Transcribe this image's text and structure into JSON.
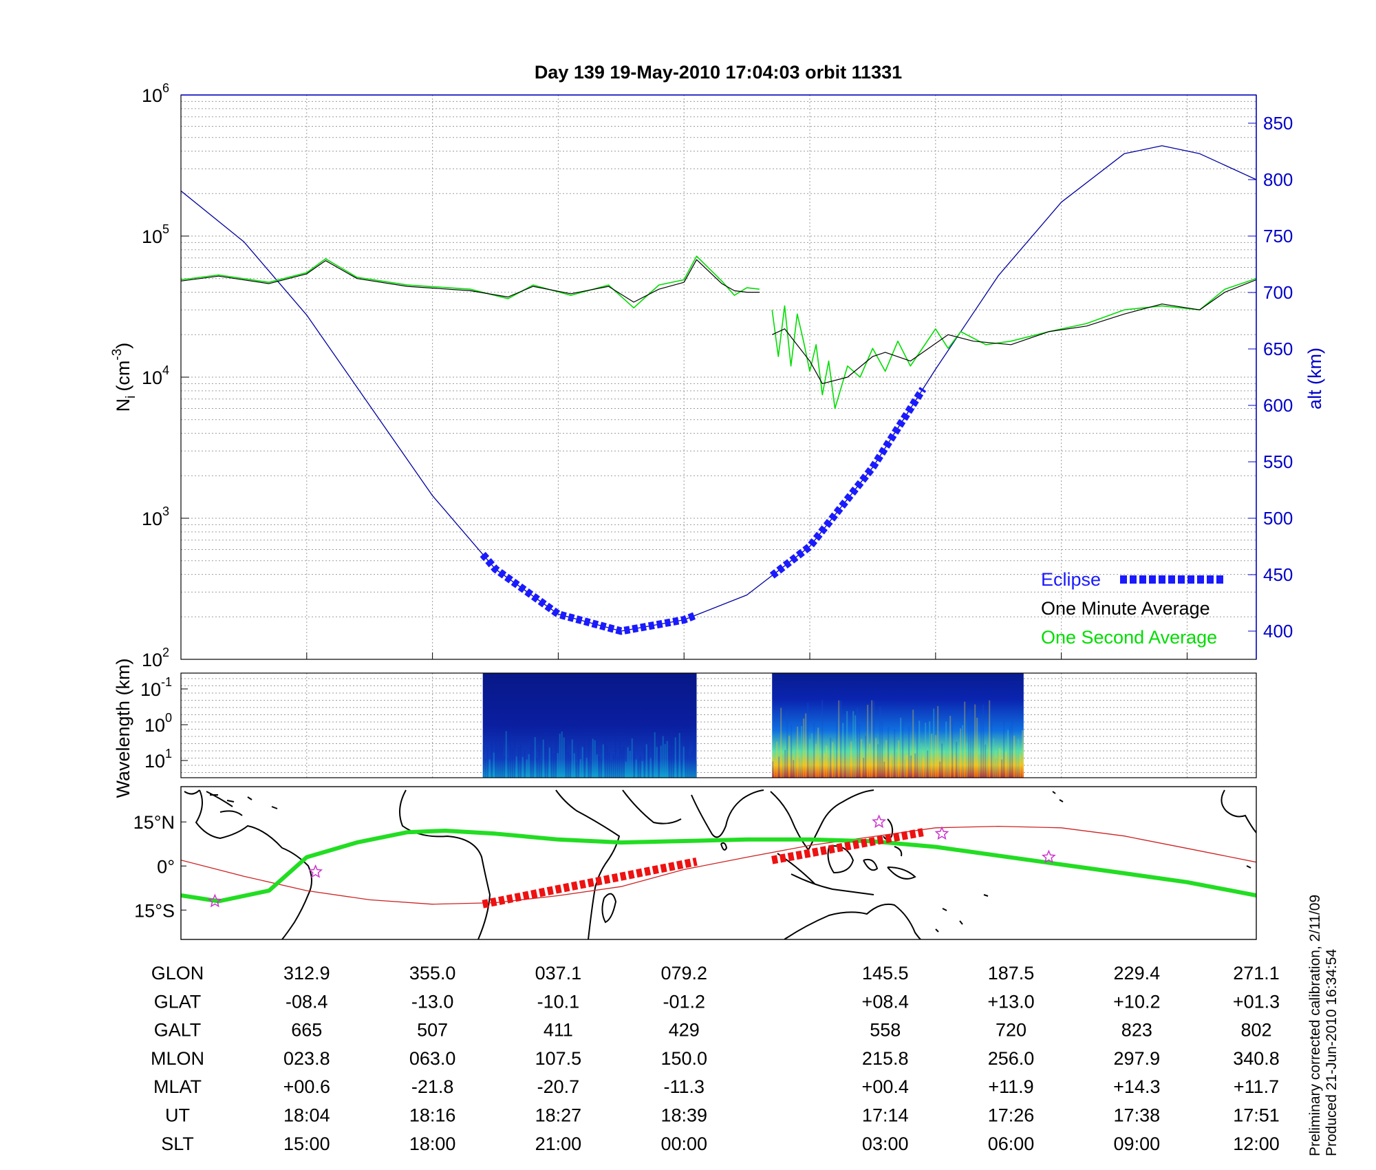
{
  "title": "Day 139  19-May-2010 17:04:03   orbit 11331",
  "side_note": [
    "Preliminary corrected calibration, 2/11/09",
    "Produced 21-Jun-2010 16:34:54"
  ],
  "colors": {
    "alt": "#0000a0",
    "eclipse": "#1a1aff",
    "minute": "#000000",
    "second": "#00dd00",
    "track": "#22dd22",
    "ref_track": "#cc2222",
    "eclipse_track": "#ee1111",
    "star": "#cc33cc"
  },
  "chart_data": [
    {
      "type": "line",
      "panel": "density",
      "ylabel": "N_i (cm^-3)",
      "ylabel_base": "N",
      "ylabel_sub": "i",
      "ylabel_unit": "(cm",
      "ylabel_exp": "-3",
      "yscale": "log",
      "ylim": [
        100,
        1000000
      ],
      "yticks": [
        {
          "base": "10",
          "exp": "2",
          "value": 100
        },
        {
          "base": "10",
          "exp": "3",
          "value": 1000
        },
        {
          "base": "10",
          "exp": "4",
          "value": 10000
        },
        {
          "base": "10",
          "exp": "5",
          "value": 100000
        },
        {
          "base": "10",
          "exp": "6",
          "value": 1000000
        }
      ],
      "y2label": "alt (km)",
      "y2lim": [
        375,
        875
      ],
      "y2ticks": [
        400,
        450,
        500,
        550,
        600,
        650,
        700,
        750,
        800,
        850
      ],
      "xlim": [
        0,
        8.55
      ],
      "grid": true,
      "legend_position": "bottom-right",
      "legend": [
        "Eclipse",
        "One Minute Average",
        "One Second Average"
      ],
      "series": [
        {
          "name": "One Minute Average",
          "segments": [
            {
              "x": [
                0,
                0.3,
                0.7,
                1.0,
                1.15,
                1.4,
                1.8,
                2.3,
                2.6,
                2.8,
                3.1,
                3.4,
                3.6,
                3.8,
                4.0,
                4.1,
                4.3,
                4.4,
                4.5,
                4.6
              ],
              "y": [
                48000,
                52000,
                46000,
                54000,
                67000,
                50000,
                44000,
                41000,
                37000,
                44000,
                39000,
                44000,
                34000,
                42000,
                47000,
                68000,
                46000,
                41000,
                40000,
                40000
              ]
            },
            {
              "x": [
                4.7,
                4.8,
                5.0,
                5.1,
                5.3,
                5.5,
                5.6,
                5.8,
                6.1,
                6.3,
                6.6,
                6.9,
                7.2,
                7.5,
                7.8,
                8.1,
                8.3,
                8.55
              ],
              "y": [
                20000,
                22000,
                13000,
                9000,
                10000,
                14000,
                15000,
                13000,
                20000,
                18000,
                17000,
                21000,
                23000,
                28000,
                33000,
                30000,
                40000,
                49000
              ]
            }
          ]
        },
        {
          "name": "One Second Average",
          "segments": [
            {
              "x": [
                0,
                0.3,
                0.7,
                1.0,
                1.15,
                1.4,
                1.8,
                2.3,
                2.6,
                2.8,
                3.1,
                3.4,
                3.6,
                3.8,
                4.0,
                4.1,
                4.3,
                4.4,
                4.5,
                4.6
              ],
              "y": [
                49000,
                53000,
                47000,
                55000,
                69000,
                51000,
                45000,
                42000,
                36000,
                45000,
                38000,
                45000,
                31000,
                45000,
                49000,
                72000,
                48000,
                38000,
                43000,
                42000
              ]
            },
            {
              "x": [
                4.7,
                4.75,
                4.8,
                4.85,
                4.9,
                4.95,
                5.0,
                5.05,
                5.1,
                5.15,
                5.2,
                5.3,
                5.4,
                5.5,
                5.6,
                5.7,
                5.8,
                6.0,
                6.1,
                6.2,
                6.4,
                6.6,
                6.9,
                7.2,
                7.5,
                7.8,
                8.1,
                8.3,
                8.55
              ],
              "y": [
                30000,
                14000,
                32000,
                12000,
                28000,
                18000,
                11000,
                17000,
                7500,
                13000,
                6000,
                12000,
                10000,
                16000,
                11000,
                18000,
                12000,
                22000,
                16000,
                21000,
                17000,
                18000,
                21000,
                24000,
                30000,
                32000,
                30000,
                42000,
                50000
              ]
            }
          ]
        }
      ],
      "altitude_series": {
        "name": "alt (km)",
        "x": [
          0,
          0.5,
          1.0,
          1.5,
          2.0,
          2.5,
          3.0,
          3.5,
          4.0,
          4.5,
          5.0,
          5.5,
          6.0,
          6.5,
          7.0,
          7.5,
          7.8,
          8.1,
          8.55
        ],
        "y": [
          790,
          745,
          680,
          600,
          520,
          455,
          415,
          400,
          410,
          432,
          475,
          545,
          632,
          715,
          780,
          823,
          830,
          823,
          800
        ]
      },
      "eclipse": [
        {
          "x_start": 2.4,
          "x_end": 4.1
        },
        {
          "x_start": 4.7,
          "x_end": 5.9
        }
      ]
    },
    {
      "type": "heatmap",
      "panel": "spectrogram",
      "ylabel": "Wavelength (km)",
      "yticks": [
        {
          "base": "10",
          "exp": "-1"
        },
        {
          "base": "10",
          "exp": "0"
        },
        {
          "base": "10",
          "exp": "1"
        }
      ],
      "colormap": "jet",
      "blocks": [
        {
          "x_start": 2.4,
          "x_end": 4.1,
          "intensity": 0.45
        },
        {
          "x_start": 4.7,
          "x_end": 6.7,
          "intensity": 0.85
        }
      ]
    },
    {
      "type": "line",
      "panel": "map",
      "yticks": [
        {
          "label": "15°N",
          "lat": 15
        },
        {
          "label": "0°",
          "lat": 0
        },
        {
          "label": "15°S",
          "lat": -15
        }
      ],
      "ylim": [
        -25,
        27
      ],
      "series": [
        {
          "name": "track",
          "x": [
            0,
            0.3,
            0.7,
            1.0,
            1.4,
            1.8,
            2.1,
            2.5,
            3.0,
            3.5,
            4.0,
            4.5,
            5.0,
            5.5,
            6.0,
            6.5,
            7.0,
            7.5,
            8.0,
            8.55
          ],
          "y": [
            -10,
            -12,
            -8.4,
            3,
            8,
            11.5,
            12,
            11,
            9,
            8,
            8.5,
            9,
            9,
            8.4,
            6.5,
            3.5,
            0.5,
            -2.5,
            -5.5,
            -10
          ]
        },
        {
          "name": "reference",
          "x": [
            0,
            0.5,
            1.0,
            1.5,
            2.0,
            2.5,
            3.0,
            3.5,
            4.0,
            4.5,
            5.0,
            5.5,
            6.0,
            6.5,
            7.0,
            7.5,
            8.0,
            8.55
          ],
          "y": [
            2,
            -3.5,
            -8.4,
            -11.5,
            -13,
            -12.5,
            -10.1,
            -7,
            -1.2,
            3,
            7,
            10,
            13,
            13.5,
            13,
            10.2,
            6,
            1.3
          ]
        }
      ],
      "eclipse_segments": [
        {
          "x0": 2.4,
          "y0": -13,
          "x1": 4.1,
          "y1": 1.5
        },
        {
          "x0": 4.7,
          "y0": 2,
          "x1": 5.9,
          "y1": 11.5
        }
      ],
      "stars": [
        {
          "x": 0.27,
          "y": -12
        },
        {
          "x": 1.07,
          "y": -2
        },
        {
          "x": 5.55,
          "y": 15
        },
        {
          "x": 6.05,
          "y": 11
        },
        {
          "x": 6.9,
          "y": 3
        }
      ]
    }
  ],
  "table": {
    "columns_x": [
      1,
      2,
      3,
      4,
      5.6,
      6.6,
      7.6,
      8.55
    ],
    "rows": [
      {
        "label": "GLON",
        "values": [
          "312.9",
          "355.0",
          "037.1",
          "079.2",
          "145.5",
          "187.5",
          "229.4",
          "271.1"
        ]
      },
      {
        "label": "GLAT",
        "values": [
          "-08.4",
          "-13.0",
          "-10.1",
          "-01.2",
          "+08.4",
          "+13.0",
          "+10.2",
          "+01.3"
        ]
      },
      {
        "label": "GALT",
        "values": [
          "665",
          "507",
          "411",
          "429",
          "558",
          "720",
          "823",
          "802"
        ]
      },
      {
        "label": "MLON",
        "values": [
          "023.8",
          "063.0",
          "107.5",
          "150.0",
          "215.8",
          "256.0",
          "297.9",
          "340.8"
        ]
      },
      {
        "label": "MLAT",
        "values": [
          "+00.6",
          "-21.8",
          "-20.7",
          "-11.3",
          "+00.4",
          "+11.9",
          "+14.3",
          "+11.7"
        ]
      },
      {
        "label": "UT",
        "values": [
          "18:04",
          "18:16",
          "18:27",
          "18:39",
          "17:14",
          "17:26",
          "17:38",
          "17:51"
        ]
      },
      {
        "label": "SLT",
        "values": [
          "15:00",
          "18:00",
          "21:00",
          "00:00",
          "03:00",
          "06:00",
          "09:00",
          "12:00"
        ]
      }
    ]
  }
}
